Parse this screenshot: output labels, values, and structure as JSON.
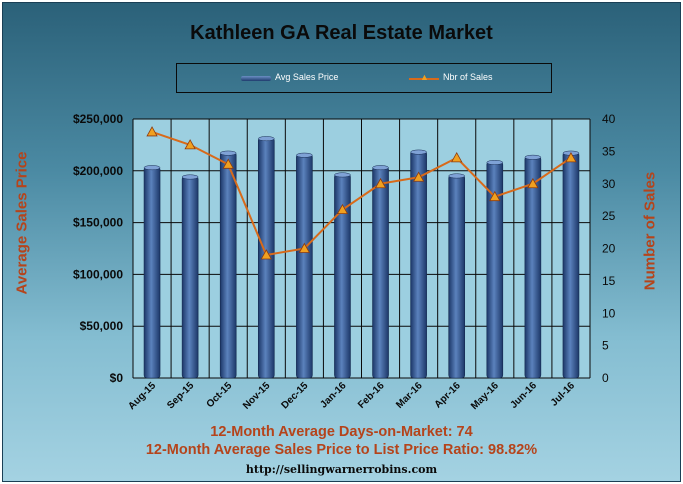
{
  "chart_data": {
    "type": "bar",
    "title": "Kathleen GA Real Estate Market",
    "categories": [
      "Aug-15",
      "Sep-15",
      "Oct-15",
      "Nov-15",
      "Dec-15",
      "Jan-16",
      "Feb-16",
      "Mar-16",
      "Apr-16",
      "May-16",
      "Jun-16",
      "Jul-16"
    ],
    "series": [
      {
        "name": "Avg Sales Price",
        "type": "bar",
        "axis": "left",
        "color": "#2a4c86",
        "values": [
          204000,
          195000,
          218000,
          232000,
          216000,
          197000,
          204000,
          219000,
          196000,
          209000,
          214000,
          218000
        ]
      },
      {
        "name": "Nbr of Sales",
        "type": "line",
        "axis": "right",
        "color": "#d86a1a",
        "marker_color": "#f0a020",
        "values": [
          38,
          36,
          33,
          19,
          20,
          26,
          30,
          31,
          34,
          28,
          30,
          34
        ]
      }
    ],
    "ylabel": "Average Sales Price",
    "ylabel_right": "Number of Sales",
    "ylim": [
      0,
      250000
    ],
    "ylim_right": [
      0,
      40
    ],
    "yticks": [
      "$0",
      "$50,000",
      "$100,000",
      "$150,000",
      "$200,000",
      "$250,000"
    ],
    "yticks_right": [
      "0",
      "5",
      "10",
      "15",
      "20",
      "25",
      "30",
      "35",
      "40"
    ],
    "grid": true,
    "legend_position": "top"
  },
  "stats": {
    "line1": "12-Month Average Days-on-Market: 74",
    "line2": "12-Month Average Sales Price to List Price Ratio: 98.82%"
  },
  "footer_url": "http://sellingwarnerrobins.com"
}
